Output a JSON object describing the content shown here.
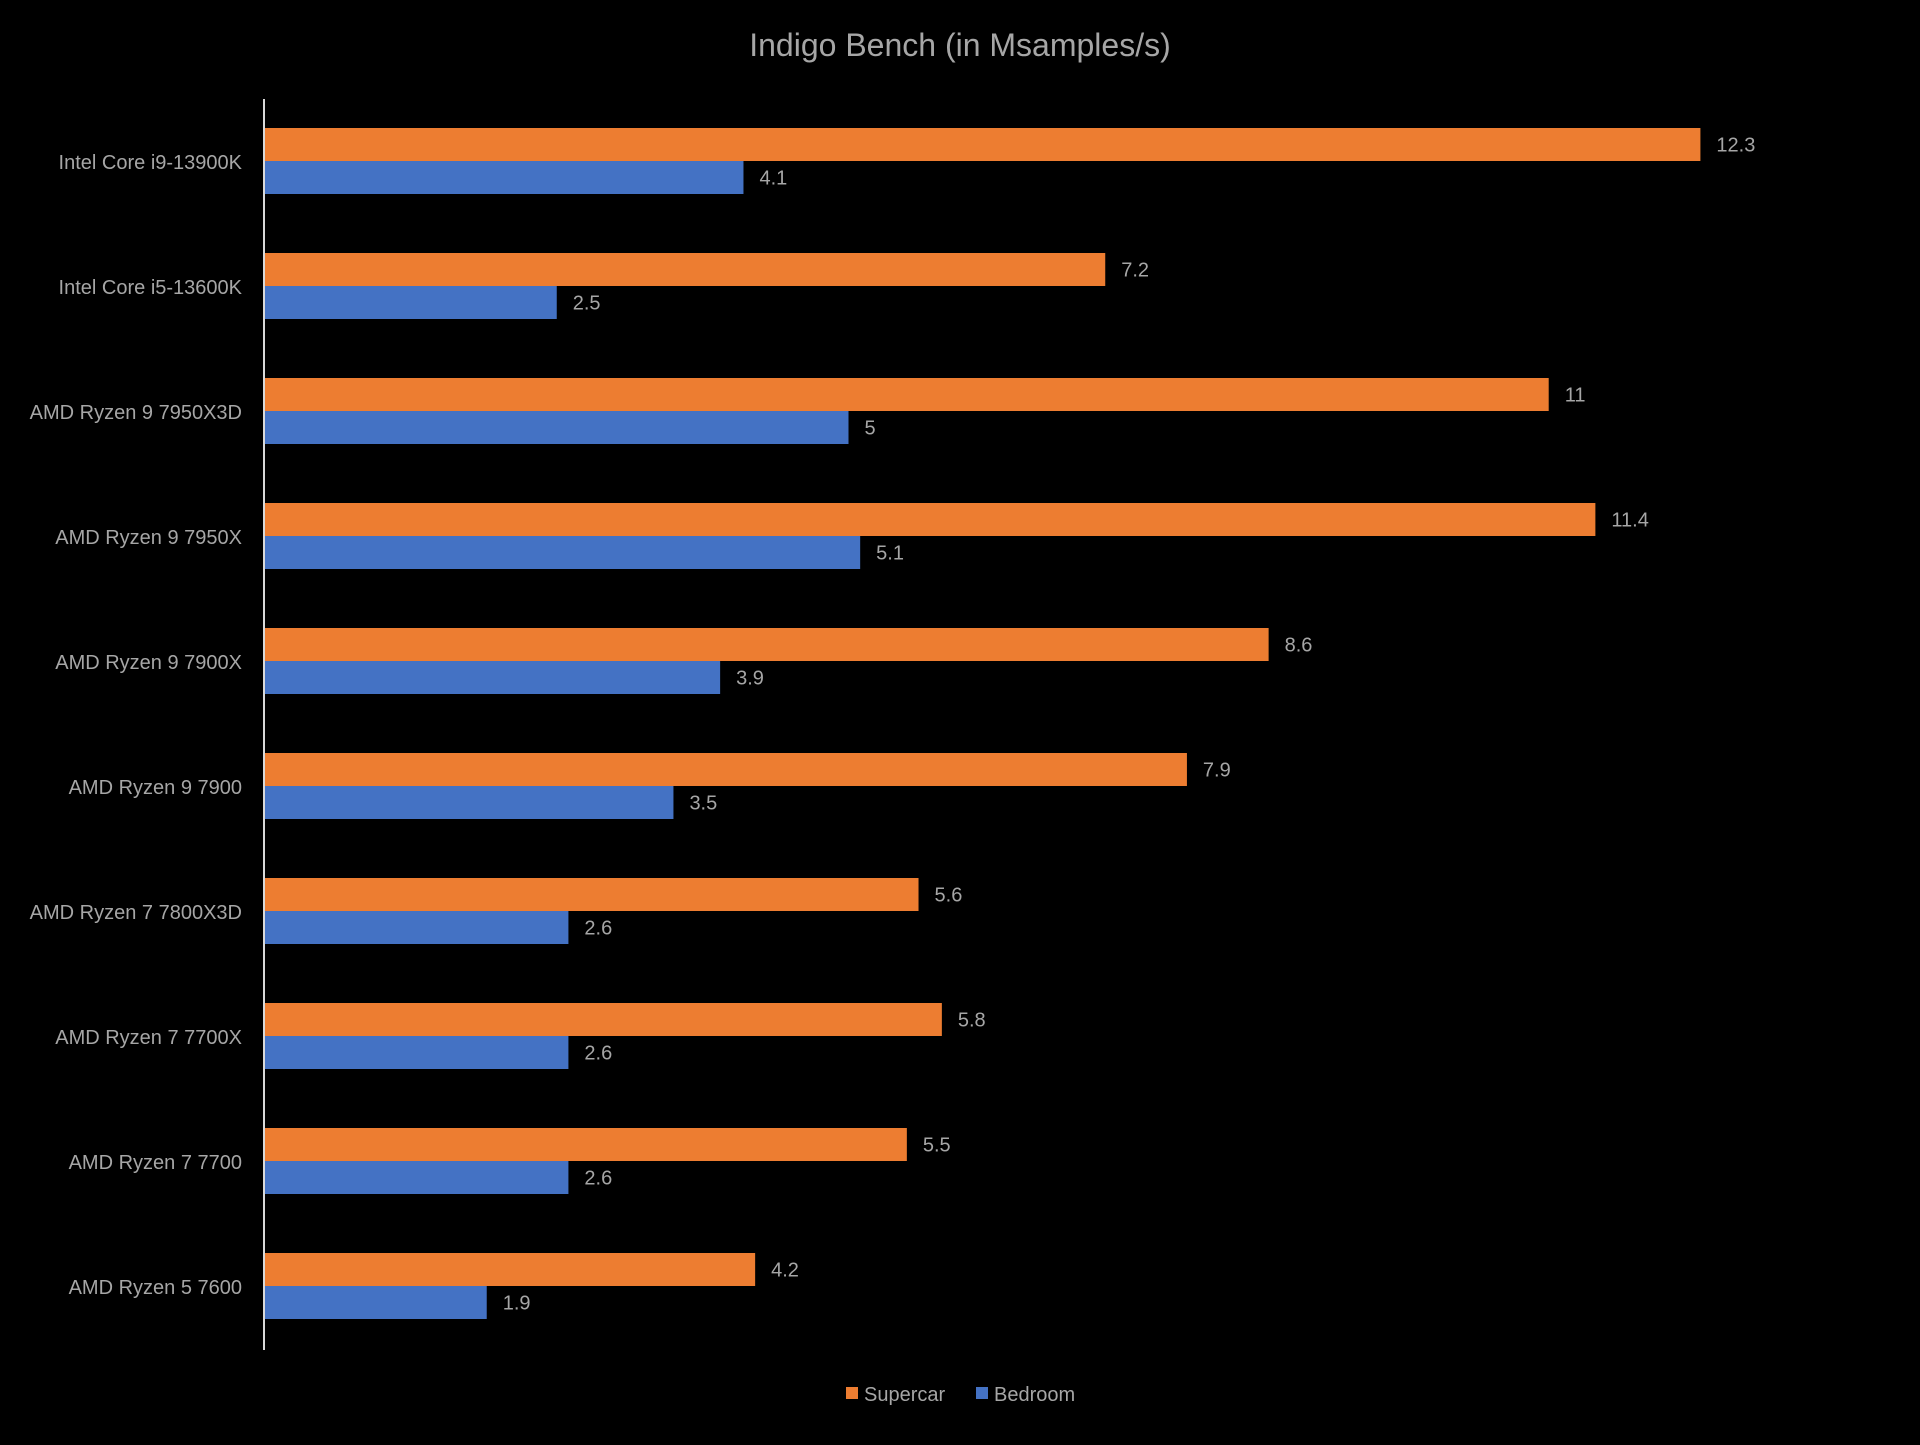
{
  "chart_data": {
    "type": "bar",
    "orientation": "horizontal",
    "title": "Indigo Bench (in Msamples/s)",
    "xlabel": "",
    "ylabel": "",
    "xlim": [
      0,
      13.2
    ],
    "grid": false,
    "legend_position": "bottom",
    "categories": [
      "Intel Core i9-13900K",
      "Intel Core i5-13600K",
      "AMD Ryzen 9 7950X3D",
      "AMD Ryzen 9 7950X",
      "AMD Ryzen 9 7900X",
      "AMD Ryzen 9 7900",
      "AMD Ryzen 7 7800X3D",
      "AMD Ryzen 7 7700X",
      "AMD Ryzen 7 7700",
      "AMD Ryzen 5 7600"
    ],
    "series": [
      {
        "name": "Supercar",
        "color": "#ED7D31",
        "values": [
          12.3,
          7.2,
          11,
          11.4,
          8.6,
          7.9,
          5.6,
          5.8,
          5.5,
          4.2
        ]
      },
      {
        "name": "Bedroom",
        "color": "#4472C4",
        "values": [
          4.1,
          2.5,
          5,
          5.1,
          3.9,
          3.5,
          2.6,
          2.6,
          2.6,
          1.9
        ]
      }
    ],
    "text_color": "#A6A6A6",
    "axis_color": "#D9D9D9",
    "background": "#000000"
  }
}
